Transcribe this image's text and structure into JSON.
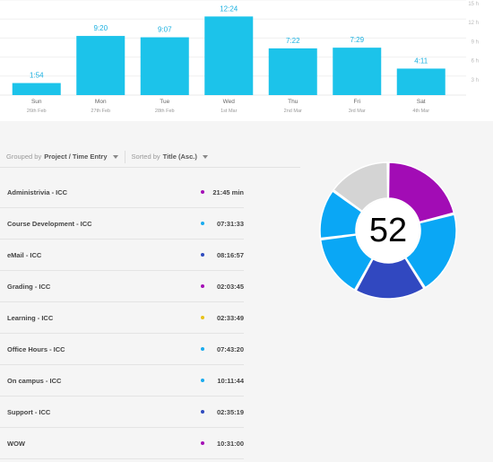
{
  "chart_data": {
    "type": "bar",
    "categories": [
      "Sun",
      "Mon",
      "Tue",
      "Wed",
      "Thu",
      "Fri",
      "Sat"
    ],
    "dates": [
      "26th Feb",
      "27th Feb",
      "28th Feb",
      "1st Mar",
      "2nd Mar",
      "3rd Mar",
      "4th Mar"
    ],
    "value_labels": [
      "1:54",
      "9:20",
      "9:07",
      "12:24",
      "7:22",
      "7:29",
      "4:11"
    ],
    "values": [
      1.9,
      9.33,
      9.12,
      12.4,
      7.37,
      7.48,
      4.18
    ],
    "yticks": [
      "15 h",
      "12 h",
      "9 h",
      "6 h",
      "3 h"
    ],
    "ytick_values": [
      15,
      12,
      9,
      6,
      3
    ],
    "ylim": [
      0,
      15
    ],
    "color": "#1cc3ea"
  },
  "toolbar": {
    "grouped_prefix": "Grouped by",
    "grouped_value": "Project / Time Entry",
    "sorted_prefix": "Sorted by",
    "sorted_value": "Title (Asc.)"
  },
  "entries": [
    {
      "title": "Administrivia - ICC",
      "time": "21:45 min",
      "color": "#a40fb6"
    },
    {
      "title": "Course Development - ICC",
      "time": "07:31:33",
      "color": "#1aabee"
    },
    {
      "title": "eMail - ICC",
      "time": "08:16:57",
      "color": "#2f4bbf"
    },
    {
      "title": "Grading - ICC",
      "time": "02:03:45",
      "color": "#a40fb6"
    },
    {
      "title": "Learning - ICC",
      "time": "02:33:49",
      "color": "#e8c21a"
    },
    {
      "title": "Office Hours - ICC",
      "time": "07:43:20",
      "color": "#1aabee"
    },
    {
      "title": "On campus - ICC",
      "time": "10:11:44",
      "color": "#1aabee"
    },
    {
      "title": "Support - ICC",
      "time": "02:35:19",
      "color": "#2f4bbf"
    },
    {
      "title": "WOW",
      "time": "10:31:00",
      "color": "#a40fb6"
    }
  ],
  "donut": {
    "center_label": "52",
    "segments": [
      {
        "value": 21,
        "color": "#a20cb5"
      },
      {
        "value": 20,
        "color": "#0aa7f5"
      },
      {
        "value": 17,
        "color": "#3148c0"
      },
      {
        "value": 15,
        "color": "#0aa7f5"
      },
      {
        "value": 12,
        "color": "#0aa7f5"
      },
      {
        "value": 15,
        "color": "#d4d4d4"
      }
    ]
  }
}
